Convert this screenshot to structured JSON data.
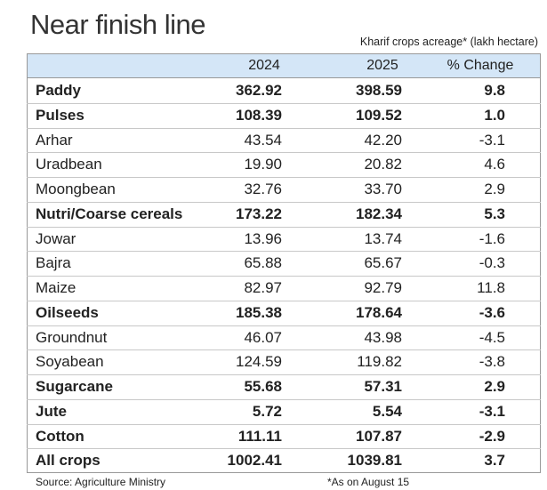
{
  "title": "Near finish line",
  "subtitle": "Kharif crops acreage* (lakh hectare)",
  "table": {
    "header": [
      "2024",
      "2025",
      "% Change"
    ],
    "rows": [
      {
        "cells": [
          "Paddy",
          "362.92",
          "398.59",
          "9.8"
        ],
        "bold": true
      },
      {
        "cells": [
          "Pulses",
          "108.39",
          "109.52",
          "1.0"
        ],
        "bold": true
      },
      {
        "cells": [
          "Arhar",
          "43.54",
          "42.20",
          "-3.1"
        ],
        "bold": false
      },
      {
        "cells": [
          "Uradbean",
          "19.90",
          "20.82",
          "4.6"
        ],
        "bold": false
      },
      {
        "cells": [
          "Moongbean",
          "32.76",
          "33.70",
          "2.9"
        ],
        "bold": false
      },
      {
        "cells": [
          "Nutri/Coarse cereals",
          "173.22",
          "182.34",
          "5.3"
        ],
        "bold": true
      },
      {
        "cells": [
          "Jowar",
          "13.96",
          "13.74",
          "-1.6"
        ],
        "bold": false
      },
      {
        "cells": [
          "Bajra",
          "65.88",
          "65.67",
          "-0.3"
        ],
        "bold": false
      },
      {
        "cells": [
          "Maize",
          "82.97",
          "92.79",
          "11.8"
        ],
        "bold": false
      },
      {
        "cells": [
          "Oilseeds",
          "185.38",
          "178.64",
          "-3.6"
        ],
        "bold": true
      },
      {
        "cells": [
          "Groundnut",
          "46.07",
          "43.98",
          "-4.5"
        ],
        "bold": false
      },
      {
        "cells": [
          "Soyabean",
          "124.59",
          "119.82",
          "-3.8"
        ],
        "bold": false
      },
      {
        "cells": [
          "Sugarcane",
          "55.68",
          "57.31",
          "2.9"
        ],
        "bold": true
      },
      {
        "cells": [
          "Jute",
          "5.72",
          "5.54",
          "-3.1"
        ],
        "bold": true
      },
      {
        "cells": [
          "Cotton",
          "111.11",
          "107.87",
          "-2.9"
        ],
        "bold": true
      },
      {
        "cells": [
          "All crops",
          "1002.41",
          "1039.81",
          "3.7"
        ],
        "bold": true
      }
    ]
  },
  "footer": {
    "source": "Source: Agriculture Ministry",
    "note": "*As on August 15"
  }
}
